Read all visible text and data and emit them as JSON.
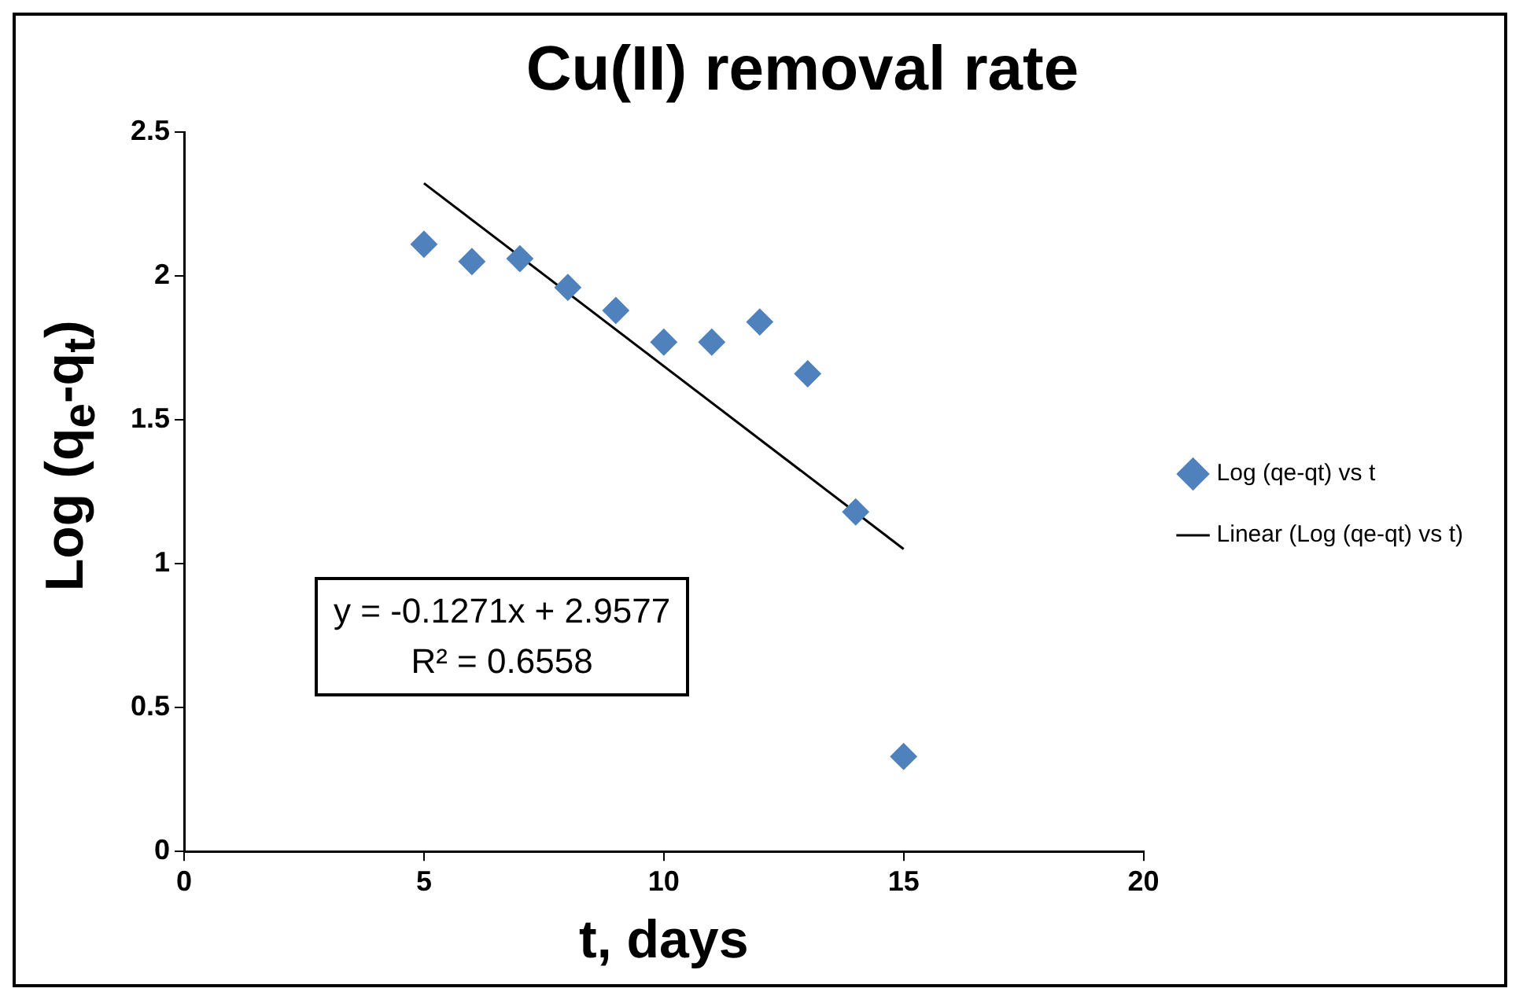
{
  "chart_data": {
    "type": "scatter",
    "title": "Cu(II) removal rate",
    "xlabel": "t, days",
    "ylabel": "Log (q$_{e}$-q$_{t}$)",
    "xlim": [
      0,
      20
    ],
    "xticks": [
      0,
      5,
      10,
      15,
      20
    ],
    "ylim": [
      0,
      2.5
    ],
    "yticks": [
      0,
      0.5,
      1,
      1.5,
      2,
      2.5
    ],
    "legend": "right",
    "marker": "diamond",
    "annotations": [
      "y = -0.1271x + 2.9577",
      "R² = 0.6558"
    ],
    "series": [
      {
        "name": "Log (qe-qt) vs t",
        "color": "#4f81bd",
        "x": [
          5,
          6,
          7,
          8,
          9,
          10,
          11,
          12,
          13,
          14,
          15
        ],
        "values": [
          2.11,
          2.05,
          2.06,
          1.96,
          1.88,
          1.77,
          1.77,
          1.84,
          1.66,
          1.18,
          0.33
        ]
      },
      {
        "name": "Linear (Log (qe-qt) vs t)",
        "type": "line",
        "color": "#000000",
        "marker": "none",
        "line_style": "solid",
        "x": [
          5,
          15
        ],
        "values": [
          2.322,
          1.051
        ]
      }
    ]
  }
}
